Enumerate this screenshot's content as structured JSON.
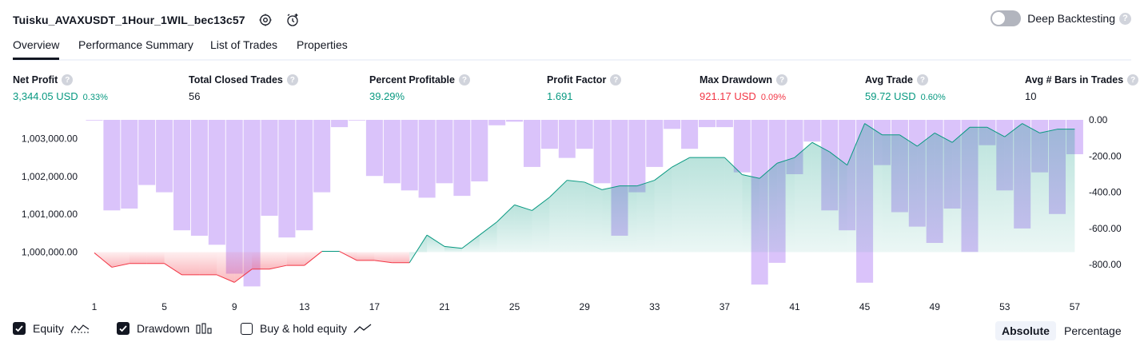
{
  "header": {
    "strategy_name": "Tuisku_AVAXUSDT_1Hour_1WIL_bec13c57",
    "deep_backtesting_label": "Deep Backtesting",
    "help_glyph": "?"
  },
  "tabs": [
    {
      "label": "Overview",
      "active": true
    },
    {
      "label": "Performance Summary"
    },
    {
      "label": "List of Trades"
    },
    {
      "label": "Properties"
    }
  ],
  "metrics": [
    {
      "label": "Net Profit",
      "value": "3,344.05 USD",
      "pct": "0.33%",
      "color": "green"
    },
    {
      "label": "Total Closed Trades",
      "value": "56",
      "pct": "",
      "color": "dark"
    },
    {
      "label": "Percent Profitable",
      "value": "39.29%",
      "pct": "",
      "color": "green"
    },
    {
      "label": "Profit Factor",
      "value": "1.691",
      "pct": "",
      "color": "green"
    },
    {
      "label": "Max Drawdown",
      "value": "921.17 USD",
      "pct": "0.09%",
      "color": "red"
    },
    {
      "label": "Avg Trade",
      "value": "59.72 USD",
      "pct": "0.60%",
      "color": "green"
    },
    {
      "label": "Avg # Bars in Trades",
      "value": "10",
      "pct": "",
      "color": "dark"
    }
  ],
  "chart_data": {
    "type": "line",
    "x_ticks": [
      "1",
      "5",
      "9",
      "13",
      "17",
      "21",
      "25",
      "29",
      "33",
      "37",
      "41",
      "45",
      "49",
      "53",
      "57"
    ],
    "left_axis_ticks": [
      "1,003,000.00",
      "1,002,000.00",
      "1,001,000.00",
      "1,000,000.00"
    ],
    "right_axis_ticks": [
      "0.00",
      "-200.00",
      "-400.00",
      "-600.00",
      "-800.00"
    ],
    "equity_baseline": 1000000,
    "series": [
      {
        "name": "Equity",
        "color_positive": "#089981",
        "color_negative": "#f23645",
        "x": [
          1,
          2,
          3,
          4,
          5,
          6,
          7,
          8,
          9,
          10,
          11,
          12,
          13,
          14,
          15,
          16,
          17,
          18,
          19,
          20,
          21,
          22,
          23,
          24,
          25,
          26,
          27,
          28,
          29,
          30,
          31,
          32,
          33,
          34,
          35,
          36,
          37,
          38,
          39,
          40,
          41,
          42,
          43,
          44,
          45,
          46,
          47,
          48,
          49,
          50,
          51,
          52,
          53,
          54,
          55,
          56,
          57
        ],
        "values": [
          999980,
          999600,
          999700,
          999700,
          999700,
          999400,
          999400,
          999400,
          999200,
          999550,
          999550,
          999650,
          999650,
          1000020,
          1000020,
          999780,
          999780,
          999720,
          999720,
          1000450,
          1000150,
          1000100,
          1000450,
          1000800,
          1001250,
          1001100,
          1001450,
          1001900,
          1001850,
          1001650,
          1001750,
          1001750,
          1001900,
          1002250,
          1002500,
          1002500,
          1002500,
          1002050,
          1001950,
          1002350,
          1002500,
          1002900,
          1002650,
          1002300,
          1003400,
          1003100,
          1003100,
          1002800,
          1003150,
          1002900,
          1003300,
          1003300,
          1003050,
          1003400,
          1003150,
          1003250,
          1003250
        ]
      },
      {
        "name": "Drawdown",
        "color": "#c29bf7",
        "x": [
          1,
          2,
          3,
          4,
          5,
          6,
          7,
          8,
          9,
          10,
          11,
          12,
          13,
          14,
          15,
          16,
          17,
          18,
          19,
          20,
          21,
          22,
          23,
          24,
          25,
          26,
          27,
          28,
          29,
          30,
          31,
          32,
          33,
          34,
          35,
          36,
          37,
          38,
          39,
          40,
          41,
          42,
          43,
          44,
          45,
          46,
          47,
          48,
          49,
          50,
          51,
          52,
          53,
          54,
          55,
          56,
          57
        ],
        "values": [
          0,
          -500,
          -490,
          -360,
          -400,
          -610,
          -640,
          -690,
          -850,
          -920,
          -530,
          -650,
          -610,
          -400,
          -40,
          0,
          -310,
          -350,
          -390,
          -430,
          -350,
          -420,
          -340,
          -30,
          -10,
          -260,
          -160,
          -210,
          -160,
          -350,
          -640,
          -400,
          -260,
          -50,
          -160,
          -40,
          -40,
          -290,
          -910,
          -790,
          -300,
          -120,
          -500,
          -610,
          -900,
          -250,
          -510,
          -590,
          -680,
          -490,
          -730,
          -140,
          -390,
          -600,
          -290,
          -520,
          -190
        ]
      }
    ]
  },
  "legend": {
    "equity_label": "Equity",
    "drawdown_label": "Drawdown",
    "buyhold_label": "Buy & hold equity"
  },
  "mode": {
    "absolute_label": "Absolute",
    "percentage_label": "Percentage"
  }
}
